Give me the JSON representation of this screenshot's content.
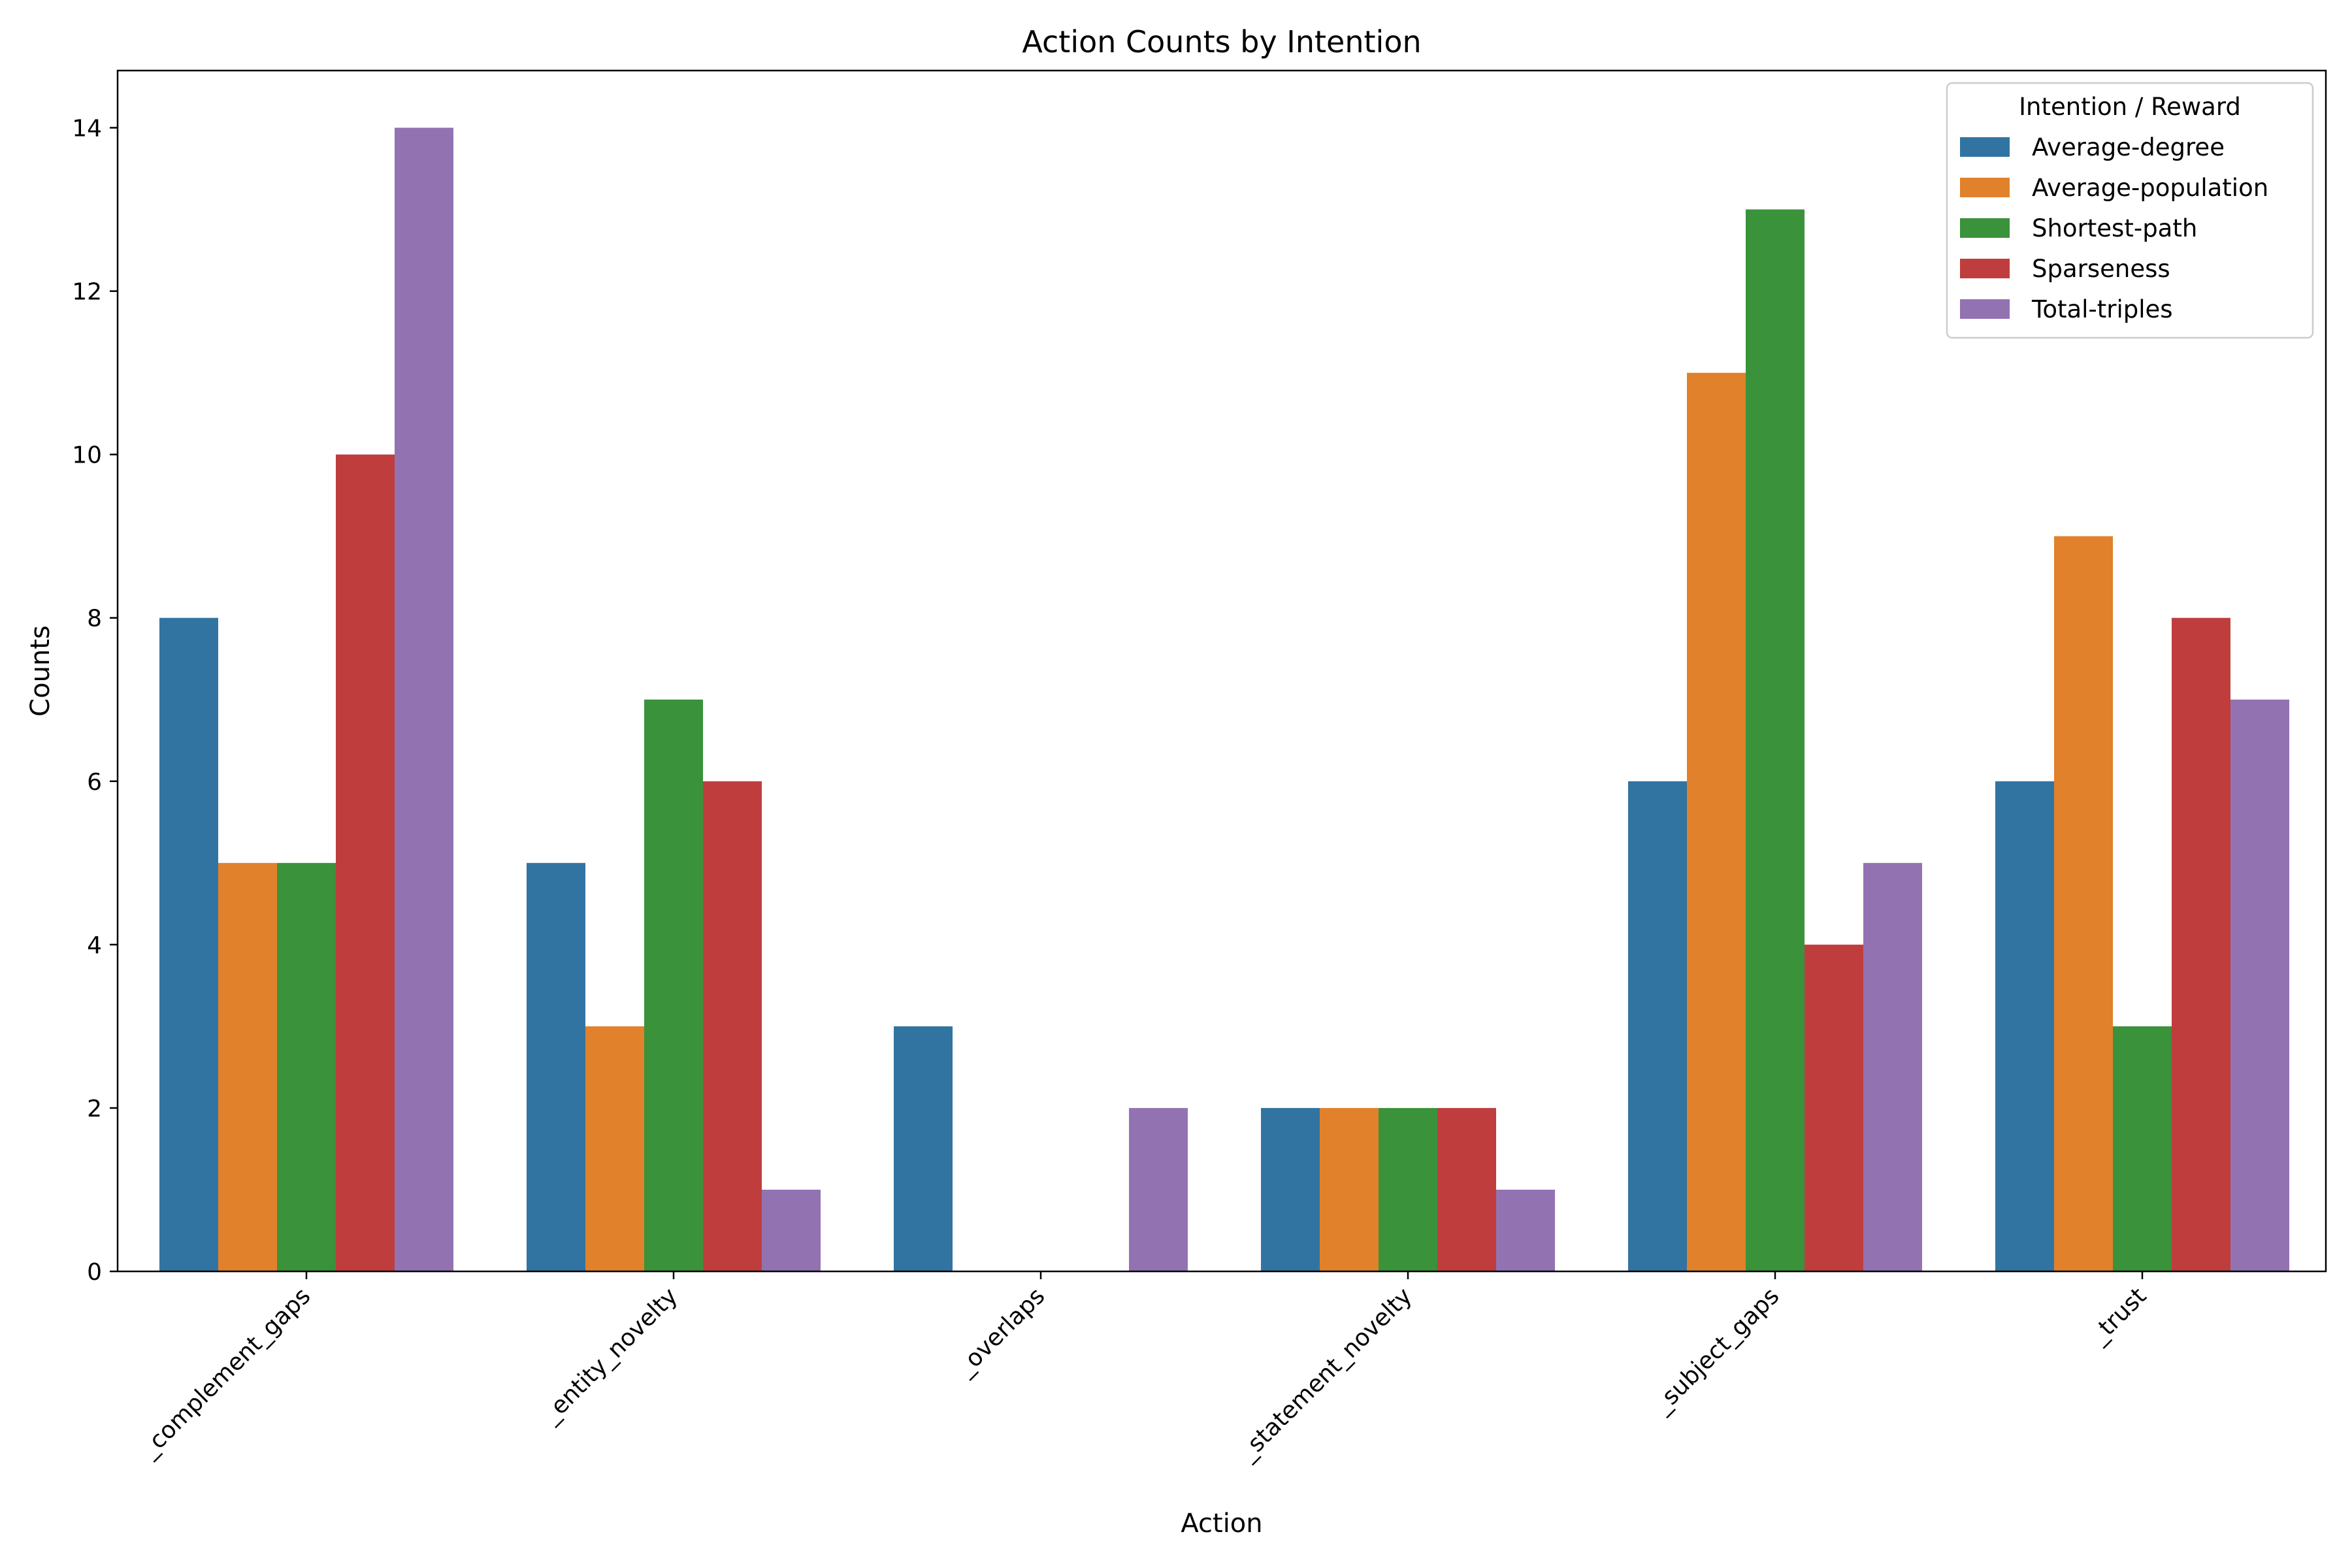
{
  "chart_data": {
    "type": "bar",
    "title": "Action Counts by Intention",
    "xlabel": "Action",
    "ylabel": "Counts",
    "ylim": [
      0,
      14.7
    ],
    "yticks": [
      0,
      2,
      4,
      6,
      8,
      10,
      12,
      14
    ],
    "categories": [
      "_complement_gaps",
      "_entity_novelty",
      "_overlaps",
      "_statement_novelty",
      "_subject_gaps",
      "_trust"
    ],
    "legend": {
      "title": "Intention / Reward",
      "placement": "top-right"
    },
    "grid": false,
    "series": [
      {
        "name": "Average-degree",
        "color": "#3274a1",
        "values": [
          8,
          5,
          3,
          2,
          6,
          6
        ]
      },
      {
        "name": "Average-population",
        "color": "#e1812c",
        "values": [
          5,
          3,
          0,
          2,
          11,
          9
        ]
      },
      {
        "name": "Shortest-path",
        "color": "#3a923a",
        "values": [
          5,
          7,
          0,
          2,
          13,
          3
        ]
      },
      {
        "name": "Sparseness",
        "color": "#c03d3e",
        "values": [
          10,
          6,
          0,
          2,
          4,
          8
        ]
      },
      {
        "name": "Total-triples",
        "color": "#9372b2",
        "values": [
          14,
          1,
          2,
          1,
          5,
          7
        ]
      }
    ]
  }
}
